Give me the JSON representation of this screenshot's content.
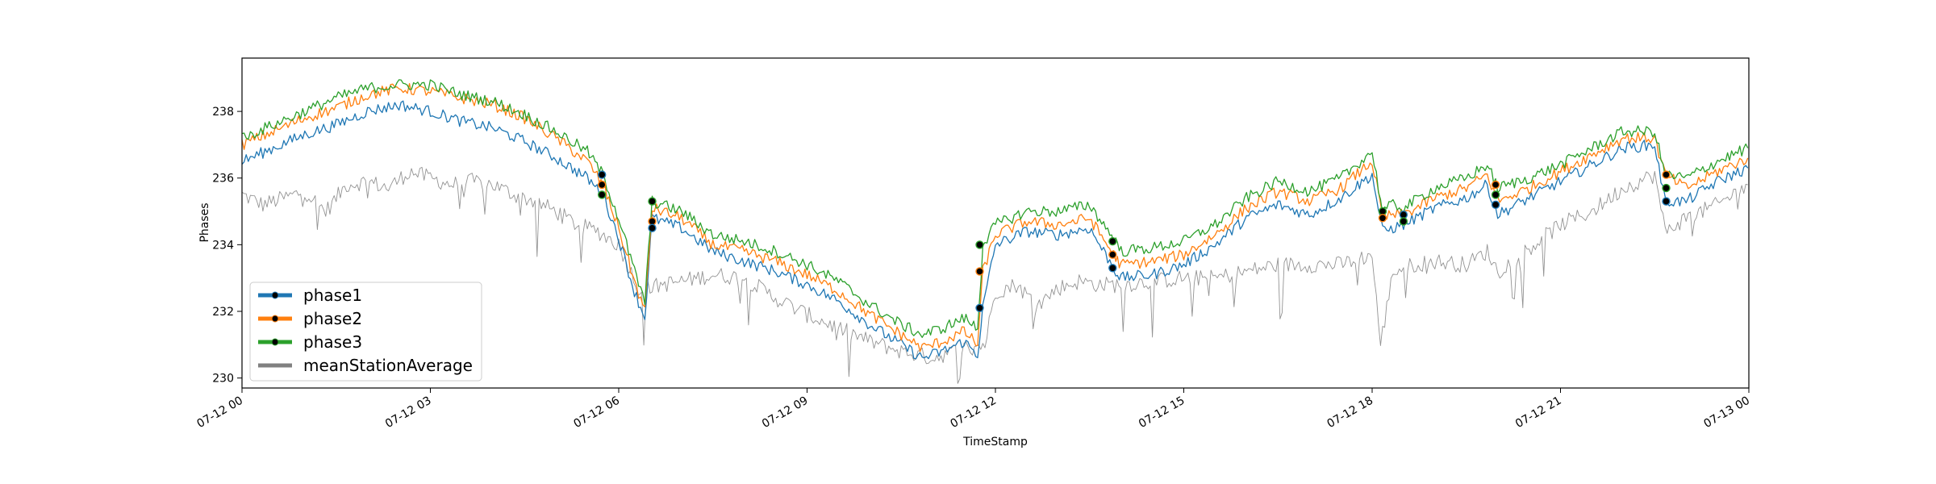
{
  "chart_data": {
    "type": "line",
    "title": "",
    "xlabel": "TimeStamp",
    "ylabel": "Phases",
    "xlim": [
      "2023-07-12 00:00",
      "2023-07-13 00:00"
    ],
    "ylim": [
      229.7,
      239.6
    ],
    "x_ticks": [
      {
        "value": "2023-07-12 00:00",
        "label": "07-12 00"
      },
      {
        "value": "2023-07-12 03:00",
        "label": "07-12 03"
      },
      {
        "value": "2023-07-12 06:00",
        "label": "07-12 06"
      },
      {
        "value": "2023-07-12 09:00",
        "label": "07-12 09"
      },
      {
        "value": "2023-07-12 12:00",
        "label": "07-12 12"
      },
      {
        "value": "2023-07-12 15:00",
        "label": "07-12 15"
      },
      {
        "value": "2023-07-12 18:00",
        "label": "07-12 18"
      },
      {
        "value": "2023-07-12 21:00",
        "label": "07-12 21"
      },
      {
        "value": "2023-07-13 00:00",
        "label": "07-13 00"
      }
    ],
    "y_ticks": [
      230,
      232,
      234,
      236,
      238
    ],
    "grid": false,
    "legend_position": "lower-left",
    "series": [
      {
        "name": "phase1",
        "color": "#1f77b4",
        "x": [
          "00:00",
          "00:30",
          "01:00",
          "01:30",
          "02:00",
          "02:30",
          "03:00",
          "03:30",
          "04:00",
          "04:30",
          "05:00",
          "05:30",
          "05:45",
          "06:00",
          "06:15",
          "06:25",
          "06:32",
          "07:00",
          "07:30",
          "08:00",
          "08:30",
          "09:00",
          "09:30",
          "10:00",
          "10:30",
          "10:50",
          "11:10",
          "11:30",
          "11:43",
          "11:48",
          "12:00",
          "12:30",
          "13:00",
          "13:30",
          "13:55",
          "14:00",
          "14:30",
          "15:00",
          "15:30",
          "16:00",
          "16:30",
          "17:00",
          "17:30",
          "18:00",
          "18:10",
          "18:20",
          "18:30",
          "19:00",
          "19:30",
          "19:50",
          "20:00",
          "20:30",
          "21:00",
          "21:30",
          "22:00",
          "22:30",
          "22:40",
          "23:00",
          "23:30",
          "23:59"
        ],
        "y": [
          236.5,
          236.9,
          237.3,
          237.6,
          238.0,
          238.2,
          238.0,
          237.7,
          237.5,
          237.1,
          236.6,
          236.0,
          235.5,
          234.2,
          232.6,
          231.8,
          234.8,
          234.5,
          233.8,
          233.5,
          233.2,
          232.8,
          232.3,
          231.6,
          231.0,
          230.6,
          230.8,
          231.1,
          230.7,
          232.1,
          234.0,
          234.4,
          234.3,
          234.5,
          233.2,
          233.0,
          233.1,
          233.4,
          234.0,
          234.8,
          235.2,
          234.9,
          235.4,
          236.1,
          234.4,
          234.5,
          234.6,
          235.1,
          235.4,
          235.8,
          234.9,
          235.4,
          235.9,
          236.4,
          236.9,
          237.0,
          235.3,
          235.3,
          235.9,
          236.3
        ]
      },
      {
        "name": "phase2",
        "color": "#ff7f0e",
        "x": [
          "00:00",
          "00:30",
          "01:00",
          "01:30",
          "02:00",
          "02:30",
          "03:00",
          "03:30",
          "04:00",
          "04:30",
          "05:00",
          "05:30",
          "05:45",
          "06:00",
          "06:15",
          "06:25",
          "06:32",
          "07:00",
          "07:30",
          "08:00",
          "08:30",
          "09:00",
          "09:30",
          "10:00",
          "10:30",
          "10:50",
          "11:10",
          "11:30",
          "11:43",
          "11:48",
          "12:00",
          "12:30",
          "13:00",
          "13:30",
          "13:55",
          "14:00",
          "14:30",
          "15:00",
          "15:30",
          "16:00",
          "16:30",
          "17:00",
          "17:30",
          "18:00",
          "18:10",
          "18:20",
          "18:30",
          "19:00",
          "19:30",
          "19:50",
          "20:00",
          "20:30",
          "21:00",
          "21:30",
          "22:00",
          "22:30",
          "22:40",
          "23:00",
          "23:30",
          "23:59"
        ],
        "y": [
          237.0,
          237.4,
          237.8,
          238.1,
          238.5,
          238.7,
          238.6,
          238.4,
          238.2,
          237.8,
          237.2,
          236.5,
          235.8,
          234.5,
          232.9,
          232.0,
          235.1,
          234.8,
          234.0,
          233.8,
          233.5,
          233.1,
          232.6,
          231.9,
          231.3,
          230.9,
          231.1,
          231.4,
          231.0,
          233.2,
          234.3,
          234.7,
          234.6,
          234.8,
          233.6,
          233.4,
          233.5,
          233.7,
          234.3,
          235.1,
          235.6,
          235.3,
          235.7,
          236.5,
          234.8,
          234.9,
          234.9,
          235.4,
          235.7,
          236.1,
          235.3,
          235.7,
          236.2,
          236.7,
          237.2,
          237.2,
          236.1,
          235.7,
          236.2,
          236.6
        ]
      },
      {
        "name": "phase3",
        "color": "#2ca02c",
        "x": [
          "00:00",
          "00:30",
          "01:00",
          "01:30",
          "02:00",
          "02:30",
          "03:00",
          "03:30",
          "04:00",
          "04:30",
          "05:00",
          "05:30",
          "05:45",
          "06:00",
          "06:15",
          "06:25",
          "06:32",
          "07:00",
          "07:30",
          "08:00",
          "08:30",
          "09:00",
          "09:30",
          "10:00",
          "10:30",
          "10:50",
          "11:10",
          "11:30",
          "11:43",
          "11:48",
          "12:00",
          "12:30",
          "13:00",
          "13:30",
          "13:55",
          "14:00",
          "14:30",
          "15:00",
          "15:30",
          "16:00",
          "16:30",
          "17:00",
          "17:30",
          "18:00",
          "18:10",
          "18:20",
          "18:30",
          "19:00",
          "19:30",
          "19:50",
          "20:00",
          "20:30",
          "21:00",
          "21:30",
          "22:00",
          "22:30",
          "22:40",
          "23:00",
          "23:30",
          "23:59"
        ],
        "y": [
          237.2,
          237.6,
          238.0,
          238.4,
          238.7,
          238.8,
          238.8,
          238.5,
          238.3,
          237.9,
          237.4,
          236.8,
          236.1,
          234.8,
          233.2,
          232.3,
          235.3,
          235.0,
          234.3,
          234.1,
          233.8,
          233.4,
          232.9,
          232.2,
          231.6,
          231.3,
          231.5,
          231.8,
          231.5,
          234.0,
          234.6,
          235.0,
          235.0,
          235.2,
          234.1,
          233.8,
          233.9,
          234.1,
          234.6,
          235.4,
          235.9,
          235.6,
          236.0,
          236.8,
          235.0,
          235.2,
          235.1,
          235.7,
          236.0,
          236.4,
          235.7,
          236.0,
          236.4,
          236.9,
          237.4,
          237.4,
          236.1,
          236.0,
          236.5,
          236.9
        ]
      },
      {
        "name": "meanStationAverage",
        "color": "#808080",
        "x": [
          "00:00",
          "00:20",
          "00:40",
          "01:00",
          "01:20",
          "01:40",
          "02:00",
          "02:20",
          "02:40",
          "03:00",
          "03:20",
          "03:40",
          "04:00",
          "04:20",
          "04:40",
          "05:00",
          "05:20",
          "05:40",
          "06:00",
          "06:20",
          "06:40",
          "07:00",
          "07:30",
          "08:00",
          "08:30",
          "09:00",
          "09:30",
          "10:00",
          "10:30",
          "11:00",
          "11:30",
          "11:50",
          "12:00",
          "12:20",
          "12:40",
          "13:00",
          "13:20",
          "13:40",
          "14:00",
          "14:30",
          "15:00",
          "15:30",
          "16:00",
          "16:30",
          "17:00",
          "17:30",
          "18:00",
          "18:08",
          "18:20",
          "18:40",
          "19:00",
          "19:30",
          "19:50",
          "20:00",
          "20:30",
          "21:00",
          "21:30",
          "22:00",
          "22:30",
          "22:40",
          "23:00",
          "23:30",
          "23:59"
        ],
        "y": [
          235.5,
          235.2,
          235.4,
          235.6,
          235.0,
          235.8,
          235.9,
          235.7,
          236.2,
          236.0,
          235.8,
          235.9,
          235.8,
          235.5,
          235.3,
          235.0,
          234.6,
          234.4,
          234.0,
          232.6,
          232.8,
          232.9,
          233.1,
          233.0,
          232.4,
          231.9,
          231.5,
          231.1,
          230.8,
          230.6,
          230.9,
          231.0,
          232.6,
          232.8,
          232.2,
          232.7,
          232.9,
          232.8,
          232.8,
          232.9,
          233.0,
          233.0,
          233.2,
          233.4,
          233.4,
          233.4,
          233.7,
          231.0,
          233.2,
          233.4,
          233.5,
          233.4,
          233.8,
          233.2,
          233.9,
          234.6,
          235.0,
          235.7,
          236.1,
          234.4,
          234.8,
          235.2,
          235.8
        ]
      }
    ],
    "markers": [
      {
        "x": "05:44",
        "y": 236.1,
        "color": "#1f77b4"
      },
      {
        "x": "05:44",
        "y": 235.8,
        "color": "#ff7f0e"
      },
      {
        "x": "05:44",
        "y": 235.5,
        "color": "#2ca02c"
      },
      {
        "x": "06:32",
        "y": 235.3,
        "color": "#2ca02c"
      },
      {
        "x": "06:32",
        "y": 234.7,
        "color": "#ff7f0e"
      },
      {
        "x": "06:32",
        "y": 234.5,
        "color": "#1f77b4"
      },
      {
        "x": "11:45",
        "y": 234.0,
        "color": "#2ca02c"
      },
      {
        "x": "11:45",
        "y": 233.2,
        "color": "#ff7f0e"
      },
      {
        "x": "11:45",
        "y": 232.1,
        "color": "#1f77b4"
      },
      {
        "x": "13:52",
        "y": 234.1,
        "color": "#2ca02c"
      },
      {
        "x": "13:52",
        "y": 233.7,
        "color": "#ff7f0e"
      },
      {
        "x": "13:52",
        "y": 233.3,
        "color": "#1f77b4"
      },
      {
        "x": "18:10",
        "y": 235.0,
        "color": "#2ca02c"
      },
      {
        "x": "18:10",
        "y": 234.8,
        "color": "#ff7f0e"
      },
      {
        "x": "18:30",
        "y": 234.9,
        "color": "#1f77b4"
      },
      {
        "x": "18:30",
        "y": 234.7,
        "color": "#2ca02c"
      },
      {
        "x": "19:58",
        "y": 235.8,
        "color": "#ff7f0e"
      },
      {
        "x": "19:58",
        "y": 235.5,
        "color": "#2ca02c"
      },
      {
        "x": "19:58",
        "y": 235.2,
        "color": "#1f77b4"
      },
      {
        "x": "22:41",
        "y": 236.1,
        "color": "#ff7f0e"
      },
      {
        "x": "22:41",
        "y": 235.7,
        "color": "#2ca02c"
      },
      {
        "x": "22:41",
        "y": 235.3,
        "color": "#1f77b4"
      }
    ]
  }
}
